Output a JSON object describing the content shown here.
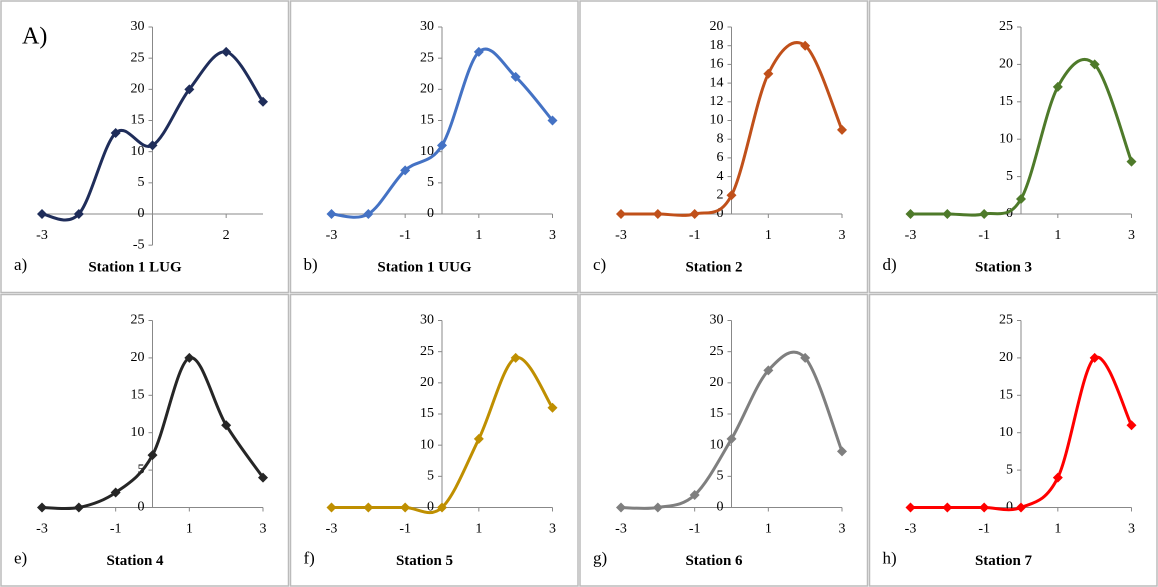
{
  "figure_label": "A)",
  "chart_data": [
    {
      "type": "line",
      "panel_label": "a)",
      "title": "Station 1 LUG",
      "color": "#1f2d5a",
      "x": [
        -3,
        -2,
        -1,
        0,
        1,
        2,
        3
      ],
      "values": [
        0,
        0,
        13,
        11,
        20,
        26,
        18
      ],
      "xlim": [
        -3,
        3
      ],
      "xticks": [
        -3,
        2
      ],
      "ylim": [
        -5,
        30
      ],
      "yticks": [
        -5,
        0,
        5,
        10,
        15,
        20,
        25,
        30
      ]
    },
    {
      "type": "line",
      "panel_label": "b)",
      "title": "Station 1 UUG",
      "color": "#4472c4",
      "x": [
        -3,
        -2,
        -1,
        0,
        1,
        2,
        3
      ],
      "values": [
        0,
        0,
        7,
        11,
        26,
        22,
        15
      ],
      "xlim": [
        -3,
        3
      ],
      "xticks": [
        -3,
        -1,
        1,
        3
      ],
      "ylim": [
        0,
        30
      ],
      "yticks": [
        0,
        5,
        10,
        15,
        20,
        25,
        30
      ]
    },
    {
      "type": "line",
      "panel_label": "c)",
      "title": "Station 2",
      "color": "#c0501a",
      "x": [
        -3,
        -2,
        -1,
        0,
        1,
        2,
        3
      ],
      "values": [
        0,
        0,
        0,
        2,
        15,
        18,
        9
      ],
      "xlim": [
        -3,
        3
      ],
      "xticks": [
        -3,
        -1,
        1,
        3
      ],
      "ylim": [
        0,
        20
      ],
      "yticks": [
        0,
        2,
        4,
        6,
        8,
        10,
        12,
        14,
        16,
        18,
        20
      ]
    },
    {
      "type": "line",
      "panel_label": "d)",
      "title": "Station 3",
      "color": "#4e7a2a",
      "x": [
        -3,
        -2,
        -1,
        0,
        1,
        2,
        3
      ],
      "values": [
        0,
        0,
        0,
        2,
        17,
        20,
        7
      ],
      "xlim": [
        -3,
        3
      ],
      "xticks": [
        -3,
        -1,
        1,
        3
      ],
      "ylim": [
        0,
        25
      ],
      "yticks": [
        0,
        5,
        10,
        15,
        20,
        25
      ]
    },
    {
      "type": "line",
      "panel_label": "e)",
      "title": "Station 4",
      "color": "#262626",
      "x": [
        -3,
        -2,
        -1,
        0,
        1,
        2,
        3
      ],
      "values": [
        0,
        0,
        2,
        7,
        20,
        11,
        4
      ],
      "xlim": [
        -3,
        3
      ],
      "xticks": [
        -3,
        -1,
        1,
        3
      ],
      "ylim": [
        0,
        25
      ],
      "yticks": [
        0,
        5,
        10,
        15,
        20,
        25
      ]
    },
    {
      "type": "line",
      "panel_label": "f)",
      "title": "Station 5",
      "color": "#bf8f00",
      "x": [
        -3,
        -2,
        -1,
        0,
        1,
        2,
        3
      ],
      "values": [
        0,
        0,
        0,
        0,
        11,
        24,
        16
      ],
      "xlim": [
        -3,
        3
      ],
      "xticks": [
        -3,
        -1,
        1,
        3
      ],
      "ylim": [
        0,
        30
      ],
      "yticks": [
        0,
        5,
        10,
        15,
        20,
        25,
        30
      ]
    },
    {
      "type": "line",
      "panel_label": "g)",
      "title": "Station 6",
      "color": "#7f7f7f",
      "x": [
        -3,
        -2,
        -1,
        0,
        1,
        2,
        3
      ],
      "values": [
        0,
        0,
        2,
        11,
        22,
        24,
        9
      ],
      "xlim": [
        -3,
        3
      ],
      "xticks": [
        -3,
        -1,
        1,
        3
      ],
      "ylim": [
        0,
        30
      ],
      "yticks": [
        0,
        5,
        10,
        15,
        20,
        25,
        30
      ]
    },
    {
      "type": "line",
      "panel_label": "h)",
      "title": "Station 7",
      "color": "#ff0000",
      "x": [
        -3,
        -2,
        -1,
        0,
        1,
        2,
        3
      ],
      "values": [
        0,
        0,
        0,
        0,
        4,
        20,
        11
      ],
      "xlim": [
        -3,
        3
      ],
      "xticks": [
        -3,
        -1,
        1,
        3
      ],
      "ylim": [
        0,
        25
      ],
      "yticks": [
        0,
        5,
        10,
        15,
        20,
        25
      ]
    }
  ]
}
